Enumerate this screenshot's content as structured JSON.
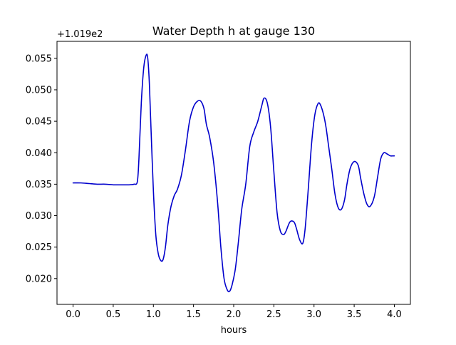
{
  "chart_data": {
    "type": "line",
    "title": "Water Depth h at gauge 130",
    "xlabel": "hours",
    "ylabel": "",
    "y_offset_label": "+1.019e2",
    "y_offset": 101.9,
    "xlim": [
      -0.2,
      4.2
    ],
    "ylim": [
      0.0159,
      0.0577
    ],
    "x_ticks": [
      0.0,
      0.5,
      1.0,
      1.5,
      2.0,
      2.5,
      3.0,
      3.5,
      4.0
    ],
    "x_tick_labels": [
      "0.0",
      "0.5",
      "1.0",
      "1.5",
      "2.0",
      "2.5",
      "3.0",
      "3.5",
      "4.0"
    ],
    "y_ticks": [
      0.02,
      0.025,
      0.03,
      0.035,
      0.04,
      0.045,
      0.05,
      0.055
    ],
    "y_tick_labels": [
      "0.020",
      "0.025",
      "0.030",
      "0.035",
      "0.040",
      "0.045",
      "0.050",
      "0.055"
    ],
    "grid": false,
    "line_color": "#0000cc",
    "series": [
      {
        "x": [
          0.0,
          0.1,
          0.2,
          0.3,
          0.4,
          0.5,
          0.6,
          0.7,
          0.76,
          0.8,
          0.82,
          0.85,
          0.88,
          0.91,
          0.93,
          0.95,
          0.97,
          1.0,
          1.03,
          1.06,
          1.09,
          1.12,
          1.15,
          1.18,
          1.22,
          1.26,
          1.3,
          1.35,
          1.4,
          1.45,
          1.5,
          1.55,
          1.59,
          1.63,
          1.66,
          1.7,
          1.75,
          1.8,
          1.84,
          1.88,
          1.92,
          1.95,
          1.98,
          2.02,
          2.06,
          2.1,
          2.15,
          2.2,
          2.25,
          2.3,
          2.35,
          2.38,
          2.42,
          2.46,
          2.5,
          2.54,
          2.58,
          2.62,
          2.65,
          2.7,
          2.75,
          2.78,
          2.82,
          2.86,
          2.89,
          2.93,
          2.97,
          3.01,
          3.05,
          3.08,
          3.12,
          3.15,
          3.18,
          3.22,
          3.26,
          3.3,
          3.34,
          3.38,
          3.41,
          3.45,
          3.5,
          3.55,
          3.58,
          3.62,
          3.66,
          3.7,
          3.75,
          3.79,
          3.83,
          3.87,
          3.91,
          3.95,
          3.98,
          4.0
        ],
        "y": [
          0.0352,
          0.0352,
          0.0351,
          0.035,
          0.035,
          0.0349,
          0.0349,
          0.0349,
          0.035,
          0.0354,
          0.039,
          0.048,
          0.0535,
          0.0555,
          0.055,
          0.051,
          0.044,
          0.034,
          0.027,
          0.024,
          0.0229,
          0.023,
          0.025,
          0.0285,
          0.0315,
          0.0332,
          0.0342,
          0.0365,
          0.0405,
          0.045,
          0.0473,
          0.0482,
          0.0482,
          0.047,
          0.0445,
          0.0425,
          0.0385,
          0.032,
          0.025,
          0.02,
          0.0182,
          0.018,
          0.019,
          0.0215,
          0.026,
          0.031,
          0.035,
          0.041,
          0.0433,
          0.045,
          0.0475,
          0.0487,
          0.0478,
          0.044,
          0.037,
          0.0305,
          0.0276,
          0.027,
          0.0275,
          0.029,
          0.029,
          0.028,
          0.0262,
          0.0256,
          0.028,
          0.0345,
          0.0415,
          0.046,
          0.0478,
          0.0476,
          0.046,
          0.044,
          0.0412,
          0.0375,
          0.0335,
          0.0313,
          0.031,
          0.0325,
          0.035,
          0.0375,
          0.0386,
          0.038,
          0.036,
          0.0335,
          0.0318,
          0.0315,
          0.033,
          0.036,
          0.039,
          0.04,
          0.0398,
          0.0395,
          0.0395,
          0.0395
        ]
      }
    ]
  }
}
